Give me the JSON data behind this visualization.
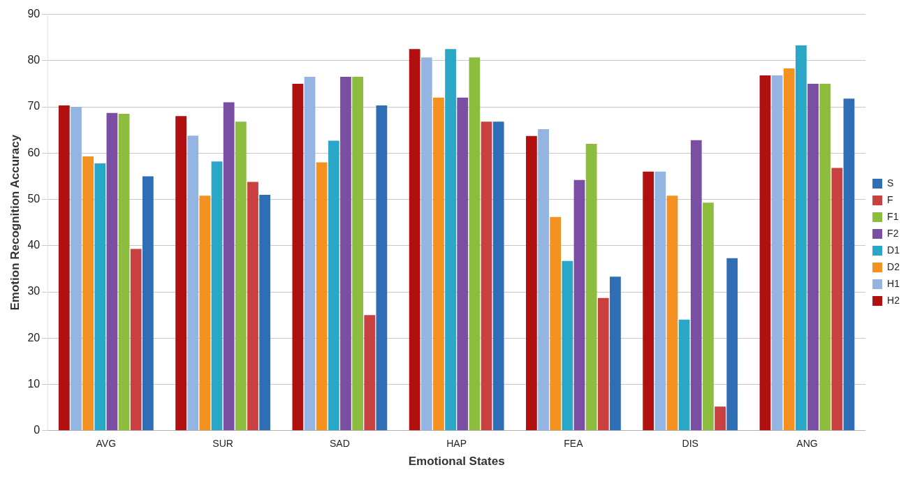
{
  "chart_data": {
    "type": "bar",
    "xlabel": "Emotional States",
    "ylabel": "Emotion Recognition Accuracy",
    "categories": [
      "AVG",
      "SUR",
      "SAD",
      "HAP",
      "FEA",
      "DIS",
      "ANG"
    ],
    "series": [
      {
        "name": "H2",
        "color": "#b01010",
        "values": [
          70.3,
          68,
          75,
          82.5,
          63.7,
          56,
          76.8
        ]
      },
      {
        "name": "H1",
        "color": "#94b4e2",
        "values": [
          70,
          63.8,
          76.5,
          80.7,
          65.2,
          56,
          76.8
        ]
      },
      {
        "name": "D2",
        "color": "#f39121",
        "values": [
          59.3,
          50.8,
          58,
          72,
          46.2,
          50.8,
          78.3
        ]
      },
      {
        "name": "D1",
        "color": "#2aa6c6",
        "values": [
          57.8,
          58.2,
          62.7,
          82.5,
          36.7,
          24,
          83.3
        ]
      },
      {
        "name": "F2",
        "color": "#7a4ea3",
        "values": [
          68.7,
          71,
          76.5,
          72,
          54.2,
          62.8,
          75
        ]
      },
      {
        "name": "F1",
        "color": "#8dbd3e",
        "values": [
          68.5,
          66.8,
          76.5,
          80.7,
          62,
          49.3,
          75
        ]
      },
      {
        "name": "F",
        "color": "#c8403f",
        "values": [
          39.3,
          53.8,
          25,
          66.8,
          28.7,
          5.2,
          56.8
        ]
      },
      {
        "name": "S",
        "color": "#2f6db4",
        "values": [
          55,
          51,
          70.3,
          66.8,
          33.3,
          37.3,
          71.8
        ]
      }
    ],
    "ylim": [
      0,
      90
    ],
    "yticks": [
      0,
      10,
      20,
      30,
      40,
      50,
      60,
      70,
      80,
      90
    ],
    "grid": "y",
    "legend": "right"
  }
}
